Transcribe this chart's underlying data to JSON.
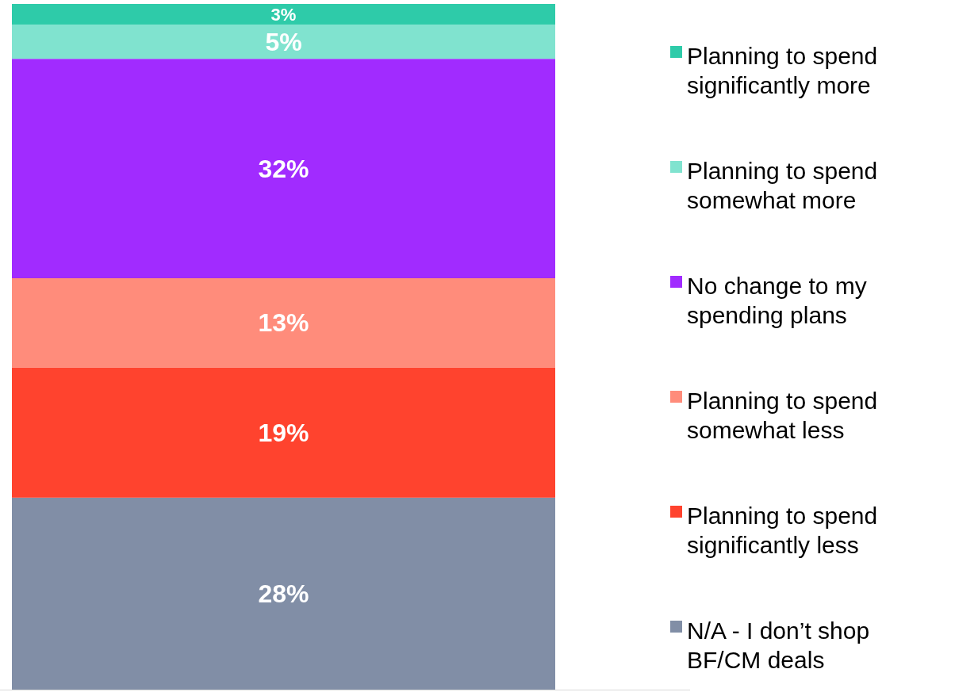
{
  "chart_data": {
    "type": "bar",
    "stacked": true,
    "categories": [
      null
    ],
    "series": [
      {
        "name": "N/A - I don’t shop BF/CM deals",
        "color": "#818ea6",
        "values": [
          28
        ],
        "value_labels": [
          "28%"
        ]
      },
      {
        "name": "Planning to spend significantly less",
        "color": "#ff432e",
        "values": [
          19
        ],
        "value_labels": [
          "19%"
        ]
      },
      {
        "name": "Planning to spend somewhat less",
        "color": "#ff8c7b",
        "values": [
          13
        ],
        "value_labels": [
          "13%"
        ]
      },
      {
        "name": "No change to my spending plans",
        "color": "#a12bff",
        "values": [
          32
        ],
        "value_labels": [
          "32%"
        ]
      },
      {
        "name": "Planning to spend somewhat more",
        "color": "#80e3cf",
        "values": [
          5
        ],
        "value_labels": [
          "5%"
        ]
      },
      {
        "name": "Planning to spend significantly more",
        "color": "#2ecba9",
        "values": [
          3
        ],
        "value_labels": [
          "3%"
        ]
      }
    ],
    "legend": "right"
  }
}
